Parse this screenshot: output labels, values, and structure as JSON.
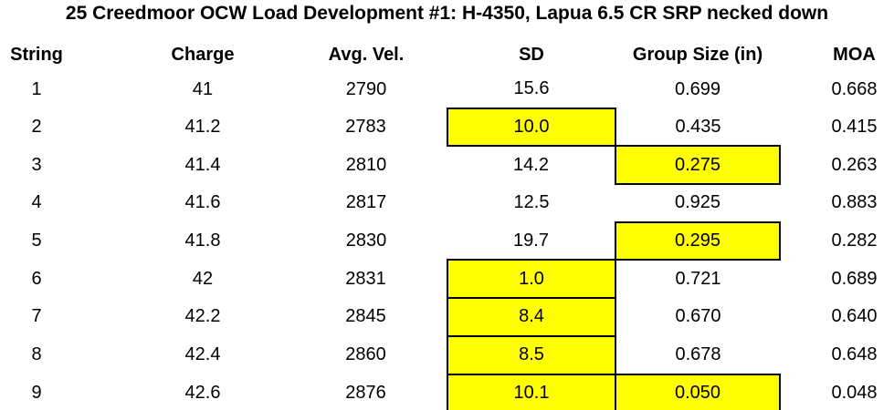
{
  "title": "25 Creedmoor OCW Load Development #1: H-4350, Lapua 6.5 CR SRP necked down",
  "table": {
    "columns": {
      "string": "String",
      "charge": "Charge",
      "avg_vel": "Avg. Vel.",
      "sd": "SD",
      "group_size": "Group Size (in)",
      "moa": "MOA"
    },
    "rows": [
      {
        "string": "1",
        "charge": "41",
        "avg_vel": "2790",
        "sd": "15.6",
        "group_size": "0.699",
        "moa": "0.668",
        "highlights": []
      },
      {
        "string": "2",
        "charge": "41.2",
        "avg_vel": "2783",
        "sd": "10.0",
        "group_size": "0.435",
        "moa": "0.415",
        "highlights": [
          "sd"
        ]
      },
      {
        "string": "3",
        "charge": "41.4",
        "avg_vel": "2810",
        "sd": "14.2",
        "group_size": "0.275",
        "moa": "0.263",
        "highlights": [
          "group_size"
        ]
      },
      {
        "string": "4",
        "charge": "41.6",
        "avg_vel": "2817",
        "sd": "12.5",
        "group_size": "0.925",
        "moa": "0.883",
        "highlights": []
      },
      {
        "string": "5",
        "charge": "41.8",
        "avg_vel": "2830",
        "sd": "19.7",
        "group_size": "0.295",
        "moa": "0.282",
        "highlights": [
          "group_size"
        ]
      },
      {
        "string": "6",
        "charge": "42",
        "avg_vel": "2831",
        "sd": "1.0",
        "group_size": "0.721",
        "moa": "0.689",
        "highlights": [
          "sd"
        ]
      },
      {
        "string": "7",
        "charge": "42.2",
        "avg_vel": "2845",
        "sd": "8.4",
        "group_size": "0.670",
        "moa": "0.640",
        "highlights": [
          "sd"
        ]
      },
      {
        "string": "8",
        "charge": "42.4",
        "avg_vel": "2860",
        "sd": "8.5",
        "group_size": "0.678",
        "moa": "0.648",
        "highlights": [
          "sd"
        ]
      },
      {
        "string": "9",
        "charge": "42.6",
        "avg_vel": "2876",
        "sd": "10.1",
        "group_size": "0.050",
        "moa": "0.048",
        "highlights": [
          "sd",
          "group_size"
        ]
      }
    ]
  },
  "colors": {
    "highlight_fill": "#FFFF00",
    "highlight_border": "#000000",
    "text": "#000000",
    "background": "#FFFFFF"
  }
}
